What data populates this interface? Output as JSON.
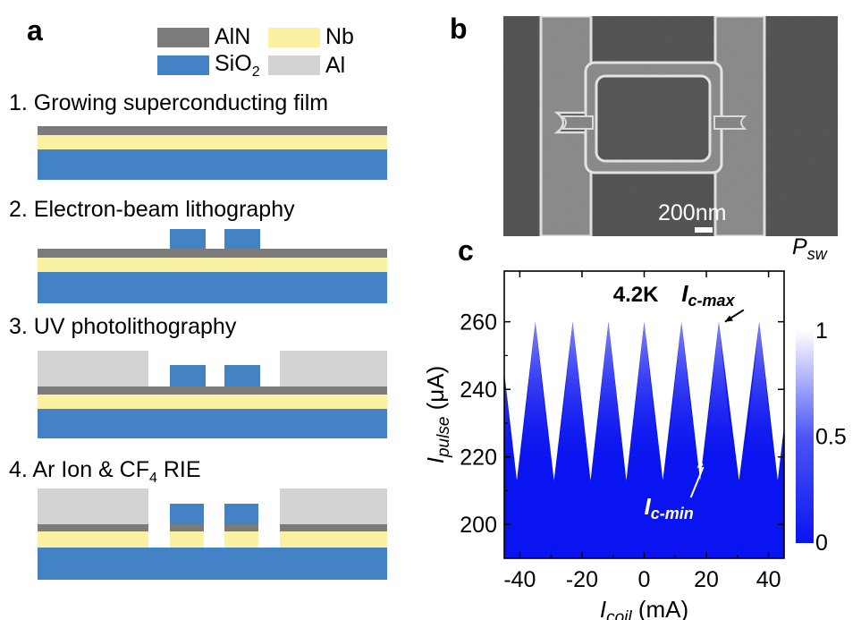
{
  "panels": {
    "a": "a",
    "b": "b",
    "c": "c"
  },
  "colors": {
    "AlN": "#7b7b7b",
    "Nb": "#faf2a2",
    "SiO2": "#4383c5",
    "Al": "#d3d3d3",
    "plot_blue": "#0a14f0"
  },
  "legend": [
    {
      "key": "AlN",
      "label": "AlN"
    },
    {
      "key": "Nb",
      "label": "Nb"
    },
    {
      "key": "SiO2",
      "label": "SiO",
      "sub": "2"
    },
    {
      "key": "Al",
      "label": "Al"
    }
  ],
  "steps": [
    {
      "title": "1. Growing superconducting film"
    },
    {
      "title": "2. Electron-beam lithography"
    },
    {
      "title": "3. UV photolithography"
    },
    {
      "title": "4. Ar Ion & CF",
      "sub": "4",
      "suffix": " RIE"
    }
  ],
  "sem": {
    "scalebar_label": "200nm"
  },
  "chart_data": {
    "type": "heatmap",
    "xlabel": {
      "main": "I",
      "sub": "coil",
      "unit": " (mA)"
    },
    "ylabel": {
      "main": "I",
      "sub": "pulse",
      "unit": " (μA)"
    },
    "xlim": [
      -45,
      45
    ],
    "ylim": [
      190,
      275
    ],
    "xticks": [
      "-40",
      "-20",
      "0",
      "20",
      "40"
    ],
    "xtick_values": [
      -40,
      -20,
      0,
      20,
      40
    ],
    "yticks": [
      "200",
      "220",
      "240",
      "260"
    ],
    "ytick_values": [
      200,
      220,
      240,
      260
    ],
    "colorbar": {
      "title": "P",
      "title_sub": "sw",
      "min_label": "0",
      "mid_label": "0.5",
      "max_label": "1",
      "range": [
        0,
        1
      ]
    },
    "peak_positions_mA": [
      -35,
      -23,
      -11.5,
      0,
      12,
      24,
      37
    ],
    "Ic_max_uA": 260,
    "Ic_min_uA": 213,
    "annotations": {
      "temperature": "4.2K",
      "ic_max": {
        "main": "I",
        "sub": "c-max"
      },
      "ic_min": {
        "main": "I",
        "sub": "c-min"
      }
    }
  }
}
